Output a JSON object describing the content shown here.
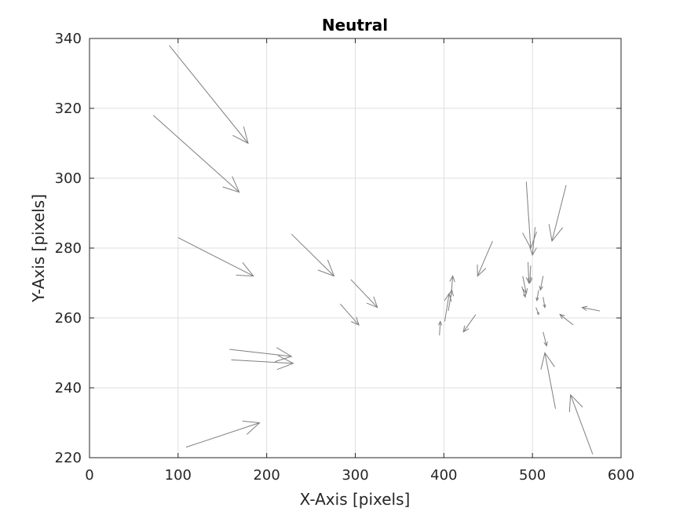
{
  "chart_data": {
    "type": "quiver",
    "title": "Neutral",
    "xlabel": "X-Axis [pixels]",
    "ylabel": "Y-Axis [pixels]",
    "xlim": [
      0,
      600
    ],
    "ylim": [
      220,
      340
    ],
    "xticks": [
      0,
      100,
      200,
      300,
      400,
      500,
      600
    ],
    "yticks": [
      220,
      240,
      260,
      280,
      300,
      320,
      340
    ],
    "grid": true,
    "colors": {
      "arrow": "#7f7f7f",
      "grid": "#dfdfdf",
      "axis": "#262626"
    },
    "vectors": [
      {
        "x": 90,
        "y": 338,
        "u": 89,
        "v": -28
      },
      {
        "x": 72,
        "y": 318,
        "u": 97,
        "v": -22
      },
      {
        "x": 100,
        "y": 283,
        "u": 85,
        "v": -11
      },
      {
        "x": 158,
        "y": 251,
        "u": 70,
        "v": -2
      },
      {
        "x": 160,
        "y": 248,
        "u": 70,
        "v": -1
      },
      {
        "x": 109,
        "y": 223,
        "u": 83,
        "v": 7
      },
      {
        "x": 228,
        "y": 284,
        "u": 48,
        "v": -12
      },
      {
        "x": 295,
        "y": 271,
        "u": 30,
        "v": -8
      },
      {
        "x": 283,
        "y": 264,
        "u": 21,
        "v": -6
      },
      {
        "x": 395,
        "y": 255,
        "u": 1,
        "v": 4
      },
      {
        "x": 401,
        "y": 259,
        "u": 5,
        "v": 8
      },
      {
        "x": 405,
        "y": 262,
        "u": 4,
        "v": 6
      },
      {
        "x": 408,
        "y": 266,
        "u": 2,
        "v": 6
      },
      {
        "x": 436,
        "y": 261,
        "u": -14,
        "v": -5
      },
      {
        "x": 455,
        "y": 282,
        "u": -17,
        "v": -10
      },
      {
        "x": 493,
        "y": 299,
        "u": 5,
        "v": -19
      },
      {
        "x": 538,
        "y": 298,
        "u": -16,
        "v": -16
      },
      {
        "x": 503,
        "y": 286,
        "u": -3,
        "v": -8
      },
      {
        "x": 495,
        "y": 276,
        "u": 1,
        "v": -6
      },
      {
        "x": 489,
        "y": 272,
        "u": 4,
        "v": -5
      },
      {
        "x": 488,
        "y": 269,
        "u": 4,
        "v": -3
      },
      {
        "x": 498,
        "y": 275,
        "u": -1,
        "v": -5
      },
      {
        "x": 512,
        "y": 272,
        "u": -3,
        "v": -4
      },
      {
        "x": 507,
        "y": 268,
        "u": -2,
        "v": -3
      },
      {
        "x": 512,
        "y": 266,
        "u": 2,
        "v": -3
      },
      {
        "x": 504,
        "y": 263,
        "u": 3,
        "v": -2
      },
      {
        "x": 546,
        "y": 258,
        "u": -15,
        "v": 3
      },
      {
        "x": 576,
        "y": 262,
        "u": -20,
        "v": 1
      },
      {
        "x": 512,
        "y": 256,
        "u": 4,
        "v": -4
      },
      {
        "x": 526,
        "y": 234,
        "u": -12,
        "v": 16
      },
      {
        "x": 568,
        "y": 221,
        "u": -25,
        "v": 17
      }
    ]
  }
}
